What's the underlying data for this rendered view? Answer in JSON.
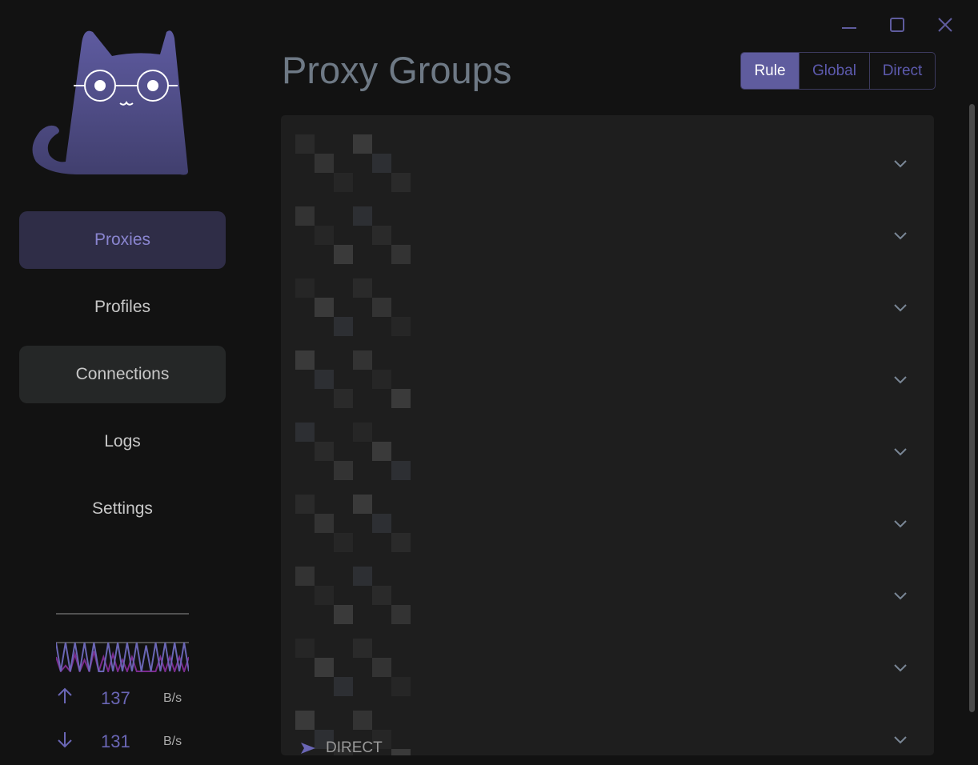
{
  "window": {
    "minimize": "minimize-icon",
    "maximize": "maximize-icon",
    "close": "close-icon"
  },
  "sidebar": {
    "items": [
      {
        "label": "Proxies",
        "state": "active"
      },
      {
        "label": "Profiles",
        "state": ""
      },
      {
        "label": "Connections",
        "state": "hover"
      },
      {
        "label": "Logs",
        "state": ""
      },
      {
        "label": "Settings",
        "state": ""
      }
    ],
    "traffic": {
      "upload": {
        "value": "137",
        "unit": "B/s"
      },
      "download": {
        "value": "131",
        "unit": "B/s"
      },
      "upload_series": [
        50,
        100,
        50,
        100,
        50,
        100,
        50,
        100,
        50,
        100,
        100,
        50,
        100,
        50,
        100,
        50,
        100,
        50,
        100,
        90,
        100,
        50,
        100,
        50,
        100,
        50,
        100,
        50,
        100
      ],
      "download_series": [
        50,
        100,
        20,
        100,
        60,
        100,
        40,
        100,
        70,
        100,
        50,
        100,
        60,
        100,
        40,
        100,
        50,
        100,
        100,
        100,
        100,
        100,
        50,
        100,
        50,
        100,
        50,
        100,
        50
      ]
    }
  },
  "header": {
    "title": "Proxy Groups",
    "modes": [
      {
        "label": "Rule",
        "selected": true
      },
      {
        "label": "Global",
        "selected": false
      },
      {
        "label": "Direct",
        "selected": false
      }
    ]
  },
  "groups": {
    "count": 9,
    "last_selected": "DIRECT"
  },
  "colors": {
    "accent": "#5f5c9e",
    "background": "#121212",
    "panel": "#1e1e1e"
  }
}
